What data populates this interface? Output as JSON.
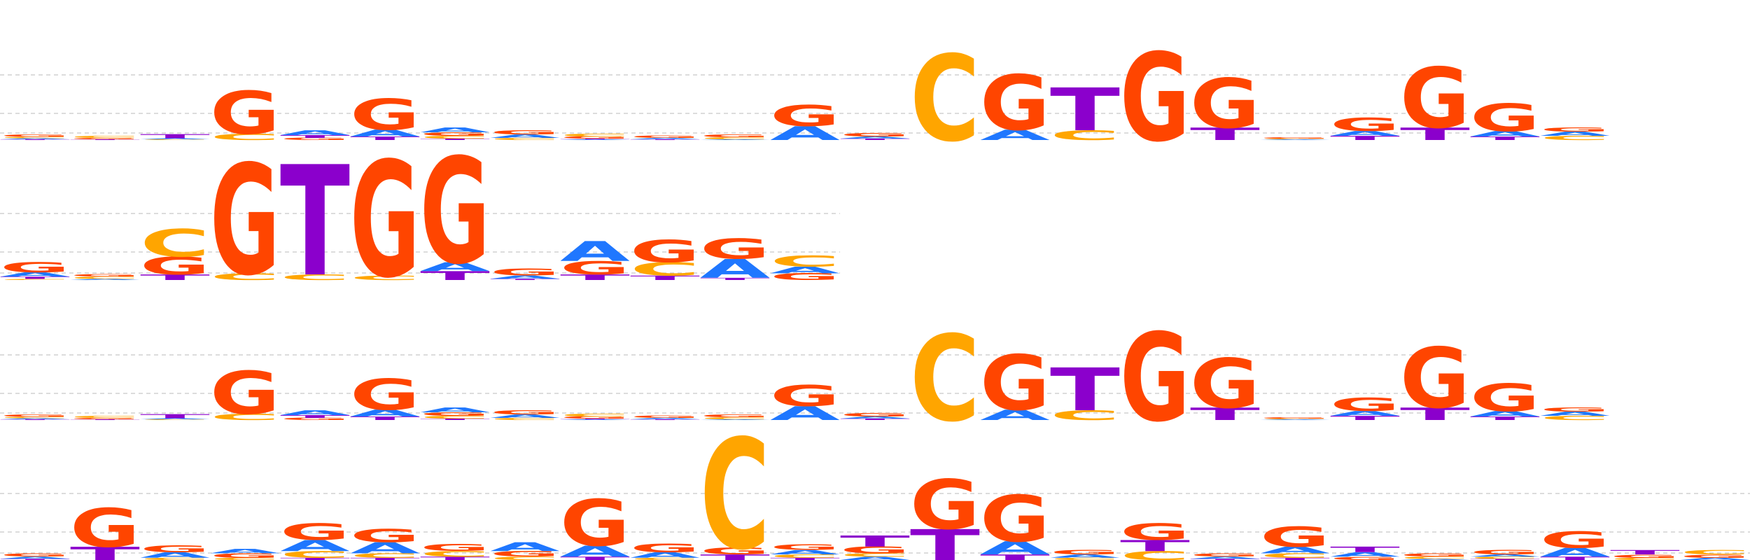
{
  "colors": {
    "A": "#1f77ff",
    "C": "#ffa500",
    "G": "#ff4500",
    "T": "#8b00cc",
    "grid": "#c8c8c8"
  },
  "logos": [
    {
      "name": "motif-logo-1",
      "columns": [
        [
          [
            "G",
            0.03
          ],
          [
            "C",
            0.02
          ],
          [
            "A",
            0.015
          ],
          [
            "T",
            0.01
          ]
        ],
        [
          [
            "C",
            0.03
          ],
          [
            "G",
            0.02
          ],
          [
            "T",
            0.01
          ]
        ],
        [
          [
            "T",
            0.06
          ],
          [
            "A",
            0.015
          ],
          [
            "C",
            0.01
          ]
        ],
        [
          [
            "G",
            0.62
          ],
          [
            "C",
            0.09
          ]
        ],
        [
          [
            "A",
            0.07
          ],
          [
            "T",
            0.04
          ],
          [
            "G",
            0.03
          ]
        ],
        [
          [
            "G",
            0.45
          ],
          [
            "A",
            0.1
          ],
          [
            "T",
            0.05
          ]
        ],
        [
          [
            "A",
            0.07
          ],
          [
            "G",
            0.05
          ],
          [
            "C",
            0.04
          ],
          [
            "T",
            0.02
          ]
        ],
        [
          [
            "G",
            0.06
          ],
          [
            "A",
            0.05
          ],
          [
            "C",
            0.03
          ]
        ],
        [
          [
            "C",
            0.04
          ],
          [
            "G",
            0.03
          ],
          [
            "A",
            0.01
          ],
          [
            "T",
            0.01
          ]
        ],
        [
          [
            "G",
            0.03
          ],
          [
            "A",
            0.02
          ],
          [
            "T",
            0.01
          ]
        ],
        [
          [
            "G",
            0.04
          ],
          [
            "C",
            0.03
          ],
          [
            "A",
            0.01
          ]
        ],
        [
          [
            "G",
            0.3
          ],
          [
            "A",
            0.2
          ]
        ],
        [
          [
            "G",
            0.05
          ],
          [
            "A",
            0.03
          ],
          [
            "T",
            0.02
          ]
        ],
        [
          [
            "C",
            1.25
          ]
        ],
        [
          [
            "G",
            0.8
          ],
          [
            "A",
            0.15
          ]
        ],
        [
          [
            "T",
            0.62
          ],
          [
            "C",
            0.14
          ]
        ],
        [
          [
            "G",
            1.28
          ]
        ],
        [
          [
            "G",
            0.72
          ],
          [
            "T",
            0.18
          ]
        ],
        [
          [
            "G",
            0.02
          ],
          [
            "A",
            0.01
          ],
          [
            "C",
            0.01
          ]
        ],
        [
          [
            "G",
            0.19
          ],
          [
            "T",
            0.06
          ],
          [
            "A",
            0.07
          ]
        ],
        [
          [
            "G",
            0.88
          ],
          [
            "T",
            0.18
          ]
        ],
        [
          [
            "G",
            0.4
          ],
          [
            "T",
            0.05
          ],
          [
            "A",
            0.08
          ]
        ],
        [
          [
            "C",
            0.06
          ],
          [
            "A",
            0.06
          ],
          [
            "G",
            0.06
          ]
        ]
      ]
    },
    {
      "name": "motif-logo-2",
      "columns": [
        [
          [
            "G",
            0.09
          ],
          [
            "A",
            0.04
          ],
          [
            "T",
            0.02
          ],
          [
            "C",
            0.01
          ]
        ],
        [
          [
            "C",
            0.02
          ],
          [
            "G",
            0.02
          ],
          [
            "A",
            0.01
          ]
        ],
        [
          [
            "C",
            0.25
          ],
          [
            "G",
            0.16
          ],
          [
            "T",
            0.05
          ]
        ],
        [
          [
            "G",
            1.0
          ],
          [
            "C",
            0.06
          ]
        ],
        [
          [
            "T",
            1.0
          ],
          [
            "C",
            0.05
          ]
        ],
        [
          [
            "G",
            1.05
          ],
          [
            "C",
            0.04
          ]
        ],
        [
          [
            "G",
            0.96
          ],
          [
            "T",
            0.08
          ],
          [
            "A",
            0.08
          ]
        ],
        [
          [
            "G",
            0.06
          ],
          [
            "A",
            0.03
          ],
          [
            "T",
            0.01
          ]
        ],
        [
          [
            "A",
            0.18
          ],
          [
            "G",
            0.12
          ],
          [
            "T",
            0.05
          ]
        ],
        [
          [
            "G",
            0.2
          ],
          [
            "C",
            0.12
          ],
          [
            "T",
            0.04
          ]
        ],
        [
          [
            "G",
            0.18
          ],
          [
            "A",
            0.17
          ],
          [
            "T",
            0.02
          ]
        ],
        [
          [
            "C",
            0.1
          ],
          [
            "G",
            0.06
          ],
          [
            "A",
            0.06
          ]
        ]
      ]
    },
    {
      "name": "motif-logo-3",
      "columns": [
        [
          [
            "G",
            0.03
          ],
          [
            "C",
            0.02
          ],
          [
            "A",
            0.015
          ],
          [
            "T",
            0.01
          ]
        ],
        [
          [
            "C",
            0.03
          ],
          [
            "G",
            0.02
          ],
          [
            "T",
            0.01
          ]
        ],
        [
          [
            "T",
            0.06
          ],
          [
            "A",
            0.015
          ],
          [
            "C",
            0.01
          ]
        ],
        [
          [
            "G",
            0.62
          ],
          [
            "C",
            0.09
          ]
        ],
        [
          [
            "A",
            0.07
          ],
          [
            "T",
            0.04
          ],
          [
            "G",
            0.03
          ]
        ],
        [
          [
            "G",
            0.45
          ],
          [
            "A",
            0.1
          ],
          [
            "T",
            0.05
          ]
        ],
        [
          [
            "A",
            0.07
          ],
          [
            "G",
            0.05
          ],
          [
            "C",
            0.04
          ],
          [
            "T",
            0.02
          ]
        ],
        [
          [
            "G",
            0.06
          ],
          [
            "A",
            0.05
          ],
          [
            "C",
            0.03
          ]
        ],
        [
          [
            "C",
            0.04
          ],
          [
            "G",
            0.03
          ],
          [
            "A",
            0.01
          ],
          [
            "T",
            0.01
          ]
        ],
        [
          [
            "G",
            0.03
          ],
          [
            "A",
            0.02
          ],
          [
            "T",
            0.01
          ]
        ],
        [
          [
            "G",
            0.04
          ],
          [
            "C",
            0.03
          ],
          [
            "A",
            0.01
          ]
        ],
        [
          [
            "G",
            0.3
          ],
          [
            "A",
            0.2
          ]
        ],
        [
          [
            "G",
            0.05
          ],
          [
            "A",
            0.03
          ],
          [
            "T",
            0.02
          ]
        ],
        [
          [
            "C",
            1.25
          ]
        ],
        [
          [
            "G",
            0.8
          ],
          [
            "A",
            0.15
          ]
        ],
        [
          [
            "T",
            0.62
          ],
          [
            "C",
            0.14
          ]
        ],
        [
          [
            "G",
            1.28
          ]
        ],
        [
          [
            "G",
            0.72
          ],
          [
            "T",
            0.18
          ]
        ],
        [
          [
            "G",
            0.02
          ],
          [
            "A",
            0.01
          ],
          [
            "C",
            0.01
          ]
        ],
        [
          [
            "G",
            0.19
          ],
          [
            "T",
            0.06
          ],
          [
            "A",
            0.07
          ]
        ],
        [
          [
            "G",
            0.88
          ],
          [
            "T",
            0.18
          ]
        ],
        [
          [
            "G",
            0.4
          ],
          [
            "T",
            0.05
          ],
          [
            "A",
            0.08
          ]
        ],
        [
          [
            "C",
            0.06
          ],
          [
            "A",
            0.06
          ],
          [
            "G",
            0.06
          ]
        ]
      ]
    },
    {
      "name": "motif-logo-4",
      "columns": [
        [
          [
            "G",
            0.03
          ],
          [
            "A",
            0.02
          ],
          [
            "T",
            0.01
          ]
        ],
        [
          [
            "G",
            0.35
          ],
          [
            "T",
            0.12
          ]
        ],
        [
          [
            "G",
            0.06
          ],
          [
            "A",
            0.05
          ],
          [
            "C",
            0.02
          ]
        ],
        [
          [
            "G",
            0.04
          ],
          [
            "A",
            0.04
          ],
          [
            "C",
            0.02
          ]
        ],
        [
          [
            "G",
            0.15
          ],
          [
            "A",
            0.1
          ],
          [
            "C",
            0.06
          ],
          [
            "T",
            0.02
          ]
        ],
        [
          [
            "G",
            0.12
          ],
          [
            "A",
            0.1
          ],
          [
            "C",
            0.04
          ],
          [
            "T",
            0.02
          ]
        ],
        [
          [
            "G",
            0.06
          ],
          [
            "C",
            0.05
          ],
          [
            "T",
            0.03
          ]
        ],
        [
          [
            "A",
            0.08
          ],
          [
            "G",
            0.05
          ],
          [
            "C",
            0.03
          ]
        ],
        [
          [
            "G",
            0.42
          ],
          [
            "A",
            0.1
          ],
          [
            "T",
            0.03
          ]
        ],
        [
          [
            "G",
            0.08
          ],
          [
            "A",
            0.05
          ],
          [
            "C",
            0.02
          ]
        ],
        [
          [
            "C",
            1.0
          ],
          [
            "G",
            0.06
          ],
          [
            "T",
            0.05
          ]
        ],
        [
          [
            "G",
            0.05
          ],
          [
            "A",
            0.04
          ],
          [
            "C",
            0.03
          ],
          [
            "T",
            0.02
          ]
        ],
        [
          [
            "T",
            0.1
          ],
          [
            "G",
            0.06
          ],
          [
            "A",
            0.03
          ],
          [
            "C",
            0.03
          ]
        ],
        [
          [
            "G",
            0.45
          ],
          [
            "T",
            0.28
          ]
        ],
        [
          [
            "G",
            0.42
          ],
          [
            "A",
            0.12
          ],
          [
            "T",
            0.05
          ]
        ],
        [
          [
            "G",
            0.04
          ],
          [
            "A",
            0.03
          ],
          [
            "C",
            0.02
          ]
        ],
        [
          [
            "G",
            0.15
          ],
          [
            "T",
            0.1
          ],
          [
            "C",
            0.08
          ]
        ],
        [
          [
            "G",
            0.03
          ],
          [
            "A",
            0.02
          ],
          [
            "T",
            0.01
          ]
        ],
        [
          [
            "G",
            0.18
          ],
          [
            "A",
            0.06
          ],
          [
            "C",
            0.04
          ],
          [
            "T",
            0.02
          ]
        ],
        [
          [
            "T",
            0.05
          ],
          [
            "A",
            0.04
          ],
          [
            "G",
            0.03
          ]
        ],
        [
          [
            "G",
            0.03
          ],
          [
            "C",
            0.02
          ],
          [
            "A",
            0.01
          ]
        ],
        [
          [
            "G",
            0.04
          ],
          [
            "C",
            0.02
          ],
          [
            "A",
            0.02
          ],
          [
            "T",
            0.01
          ]
        ],
        [
          [
            "G",
            0.15
          ],
          [
            "A",
            0.08
          ],
          [
            "T",
            0.03
          ]
        ],
        [
          [
            "T",
            0.04
          ],
          [
            "G",
            0.03
          ],
          [
            "C",
            0.02
          ]
        ],
        [
          [
            "C",
            0.04
          ],
          [
            "G",
            0.03
          ],
          [
            "A",
            0.02
          ]
        ]
      ]
    }
  ]
}
